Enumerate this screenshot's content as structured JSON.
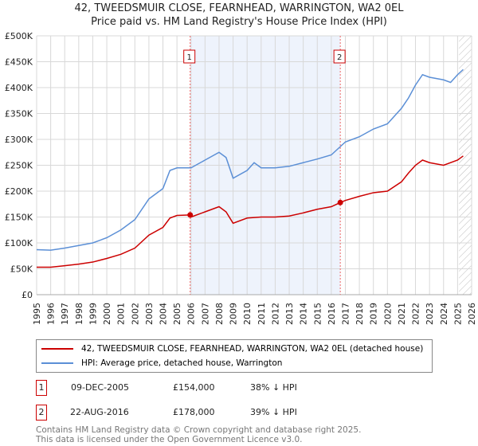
{
  "chart_data": {
    "type": "line",
    "title": "42, TWEEDSMUIR CLOSE, FEARNHEAD, WARRINGTON, WA2 0EL",
    "subtitle": "Price paid vs. HM Land Registry's House Price Index (HPI)",
    "xlim": [
      1995,
      2026
    ],
    "ylim": [
      0,
      500000
    ],
    "yticks": [
      {
        "v": 0,
        "l": "£0"
      },
      {
        "v": 50000,
        "l": "£50K"
      },
      {
        "v": 100000,
        "l": "£100K"
      },
      {
        "v": 150000,
        "l": "£150K"
      },
      {
        "v": 200000,
        "l": "£200K"
      },
      {
        "v": 250000,
        "l": "£250K"
      },
      {
        "v": 300000,
        "l": "£300K"
      },
      {
        "v": 350000,
        "l": "£350K"
      },
      {
        "v": 400000,
        "l": "£400K"
      },
      {
        "v": 450000,
        "l": "£450K"
      },
      {
        "v": 500000,
        "l": "£500K"
      }
    ],
    "xticks": [
      "1995",
      "1996",
      "1997",
      "1998",
      "1999",
      "2000",
      "2001",
      "2002",
      "2003",
      "2004",
      "2005",
      "2006",
      "2007",
      "2008",
      "2009",
      "2010",
      "2011",
      "2012",
      "2013",
      "2014",
      "2015",
      "2016",
      "2017",
      "2018",
      "2019",
      "2020",
      "2021",
      "2022",
      "2023",
      "2024",
      "2025",
      "2026"
    ],
    "series": [
      {
        "name": "42, TWEEDSMUIR CLOSE, FEARNHEAD, WARRINGTON, WA2 0EL (detached house)",
        "color": "#cc0000",
        "x": [
          1995,
          1996,
          1997,
          1998,
          1999,
          2000,
          2001,
          2002,
          2003,
          2004,
          2004.5,
          2005,
          2005.94,
          2006,
          2007,
          2008,
          2008.5,
          2009,
          2010,
          2011,
          2012,
          2013,
          2014,
          2015,
          2016,
          2016.64,
          2017,
          2018,
          2019,
          2020,
          2021,
          2021.5,
          2022,
          2022.5,
          2023,
          2024,
          2025,
          2025.4
        ],
        "y": [
          53000,
          53000,
          56000,
          59000,
          63000,
          70000,
          78000,
          90000,
          115000,
          130000,
          148000,
          153000,
          154000,
          150000,
          160000,
          170000,
          160000,
          138000,
          148000,
          150000,
          150000,
          152000,
          158000,
          165000,
          170000,
          178000,
          182000,
          190000,
          197000,
          200000,
          218000,
          235000,
          250000,
          260000,
          255000,
          250000,
          260000,
          268000
        ]
      },
      {
        "name": "HPI: Average price, detached house, Warrington",
        "color": "#5b8fd6",
        "x": [
          1995,
          1996,
          1997,
          1998,
          1999,
          2000,
          2001,
          2002,
          2003,
          2004,
          2004.5,
          2005,
          2006,
          2007,
          2008,
          2008.5,
          2009,
          2010,
          2010.5,
          2011,
          2012,
          2013,
          2014,
          2015,
          2016,
          2016.6,
          2017,
          2018,
          2019,
          2020,
          2021,
          2021.5,
          2022,
          2022.5,
          2023,
          2024,
          2024.5,
          2025,
          2025.4
        ],
        "y": [
          87000,
          86000,
          90000,
          95000,
          100000,
          110000,
          125000,
          145000,
          185000,
          205000,
          240000,
          245000,
          245000,
          260000,
          275000,
          265000,
          225000,
          240000,
          255000,
          245000,
          245000,
          248000,
          255000,
          262000,
          270000,
          285000,
          295000,
          305000,
          320000,
          330000,
          360000,
          380000,
          405000,
          425000,
          420000,
          415000,
          410000,
          425000,
          435000
        ]
      }
    ],
    "sales": [
      {
        "label": "1",
        "x": 2005.94,
        "y": 154000
      },
      {
        "label": "2",
        "x": 2016.64,
        "y": 178000
      }
    ],
    "shaded_range": [
      2005.94,
      2016.64
    ],
    "hatched_from": 2025.1
  },
  "table": [
    {
      "num": "1",
      "date": "09-DEC-2005",
      "price": "£154,000",
      "delta": "38% ↓ HPI"
    },
    {
      "num": "2",
      "date": "22-AUG-2016",
      "price": "£178,000",
      "delta": "39% ↓ HPI"
    }
  ],
  "footer": [
    "Contains HM Land Registry data © Crown copyright and database right 2025.",
    "This data is licensed under the Open Government Licence v3.0."
  ]
}
